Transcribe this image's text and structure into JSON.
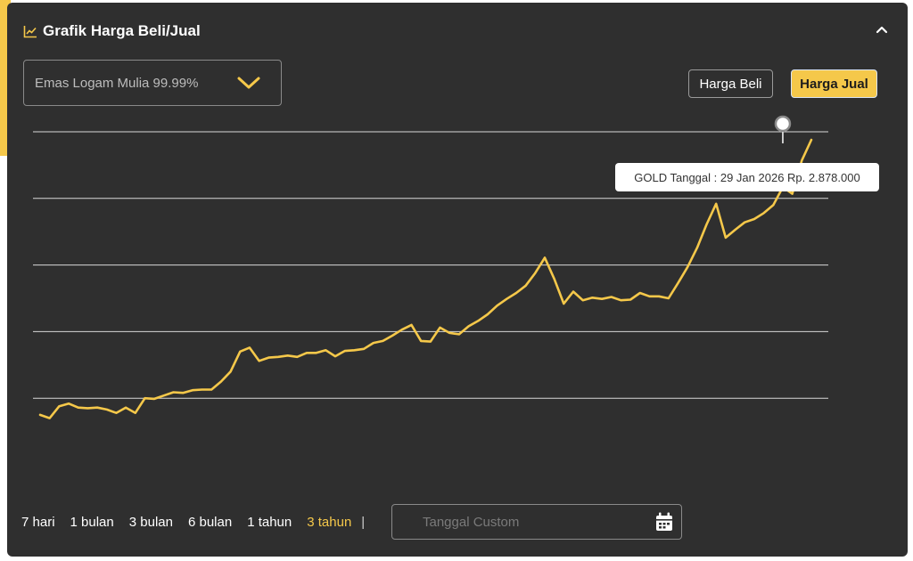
{
  "header": {
    "title": "Grafik Harga Beli/Jual",
    "icon": "line-chart-icon",
    "collapse_icon": "chevron-up-icon"
  },
  "product_select": {
    "selected": "Emas Logam Mulia 99.99%",
    "icon": "chevron-down-icon"
  },
  "toggle": {
    "beli_label": "Harga Beli",
    "jual_label": "Harga Jual",
    "active": "Harga Jual"
  },
  "colors": {
    "accent": "#f5c84a",
    "panel": "#2f2f2f",
    "grid": "#d9d9d9"
  },
  "tooltip": {
    "text": "GOLD Tanggal : 29 Jan 2026 Rp. 2.878.000"
  },
  "periods": [
    "7 hari",
    "1 bulan",
    "3 bulan",
    "6 bulan",
    "1 tahun",
    "3 tahun"
  ],
  "active_period": "3 tahun",
  "period_separator": "|",
  "custom_date": {
    "placeholder": "Tanggal Custom",
    "icon": "calendar-icon"
  },
  "chart_data": {
    "type": "line",
    "title": "",
    "xlabel": "",
    "ylabel": "",
    "grid": true,
    "grid_lines": 5,
    "ylim": [
      0,
      5
    ],
    "series": [
      {
        "values": [
          0.75,
          0.7,
          0.88,
          0.92,
          0.86,
          0.85,
          0.86,
          0.83,
          0.78,
          0.86,
          0.78,
          1.0,
          0.99,
          1.04,
          1.09,
          1.08,
          1.12,
          1.13,
          1.13,
          1.25,
          1.4,
          1.7,
          1.76,
          1.56,
          1.61,
          1.62,
          1.64,
          1.62,
          1.68,
          1.68,
          1.72,
          1.63,
          1.71,
          1.72,
          1.74,
          1.83,
          1.86,
          1.94,
          2.03,
          2.1,
          1.86,
          1.85,
          2.06,
          1.98,
          1.96,
          2.08,
          2.16,
          2.26,
          2.39,
          2.49,
          2.58,
          2.69,
          2.88,
          3.11,
          2.79,
          2.42,
          2.6,
          2.47,
          2.51,
          2.49,
          2.52,
          2.47,
          2.48,
          2.58,
          2.53,
          2.53,
          2.5,
          2.73,
          2.97,
          3.26,
          3.61,
          3.92,
          3.41,
          3.53,
          3.64,
          3.69,
          3.78,
          3.9,
          4.17,
          4.07,
          4.57,
          4.88
        ]
      }
    ]
  }
}
